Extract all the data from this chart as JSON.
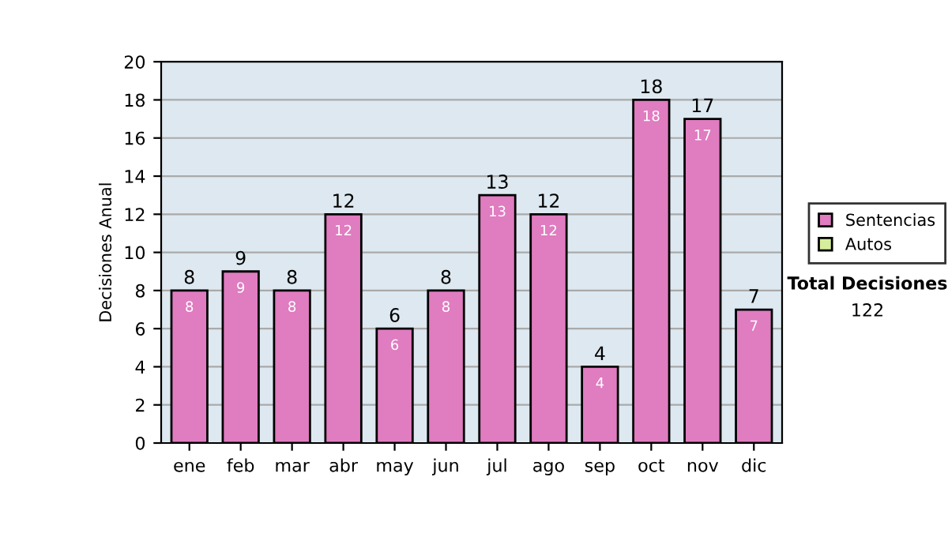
{
  "chart_data": {
    "type": "bar",
    "stacked": true,
    "ylabel": "Decisiones Anual",
    "categories": [
      "ene",
      "feb",
      "mar",
      "abr",
      "may",
      "jun",
      "jul",
      "ago",
      "sep",
      "oct",
      "nov",
      "dic"
    ],
    "series": [
      {
        "name": "Sentencias",
        "color": "#e07cc0",
        "values": [
          8,
          9,
          8,
          12,
          6,
          8,
          13,
          12,
          4,
          18,
          17,
          7
        ]
      },
      {
        "name": "Autos",
        "color": "#d6ee9c",
        "values": [
          null,
          null,
          null,
          null,
          null,
          null,
          null,
          null,
          null,
          null,
          null,
          null
        ]
      }
    ],
    "data_labels": true,
    "totals": [
      "8",
      "9",
      "8",
      "12",
      "6",
      "8",
      "13",
      "12",
      "4",
      "18",
      "17",
      "7"
    ],
    "ylim": [
      0,
      20
    ],
    "yticks": [
      0,
      2,
      4,
      6,
      8,
      10,
      12,
      14,
      16,
      18,
      20
    ],
    "grid": "y",
    "legend": "right",
    "annotations": [
      "Total Decisiones",
      "122"
    ]
  }
}
